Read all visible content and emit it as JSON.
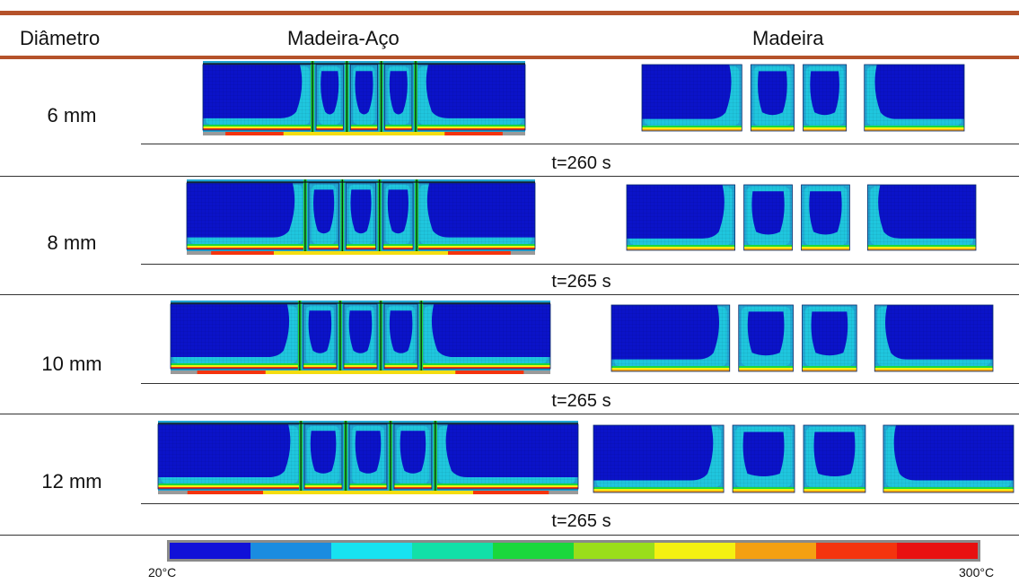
{
  "header": {
    "col_diameter": "Diâmetro",
    "col_wood_steel": "Madeira-Aço",
    "col_wood": "Madeira"
  },
  "rows": [
    {
      "diameter": "6 mm",
      "time": "t=260 s"
    },
    {
      "diameter": "8 mm",
      "time": "t=265 s"
    },
    {
      "diameter": "10 mm",
      "time": "t=265 s"
    },
    {
      "diameter": "12 mm",
      "time": "t=265 s"
    }
  ],
  "legend": {
    "min_label": "20°C",
    "max_label": "300°C",
    "colors": [
      "#1010d8",
      "#1a8ce0",
      "#17e2f0",
      "#12e0a8",
      "#1ad83c",
      "#9ade1a",
      "#f4f012",
      "#f4a012",
      "#f4340e",
      "#e81010"
    ]
  },
  "colors": {
    "rule": "#b5522a",
    "core": "#0b13c9",
    "zone_light_blue": "#22a6d4",
    "zone_cyan": "#1ee0e6"
  }
}
